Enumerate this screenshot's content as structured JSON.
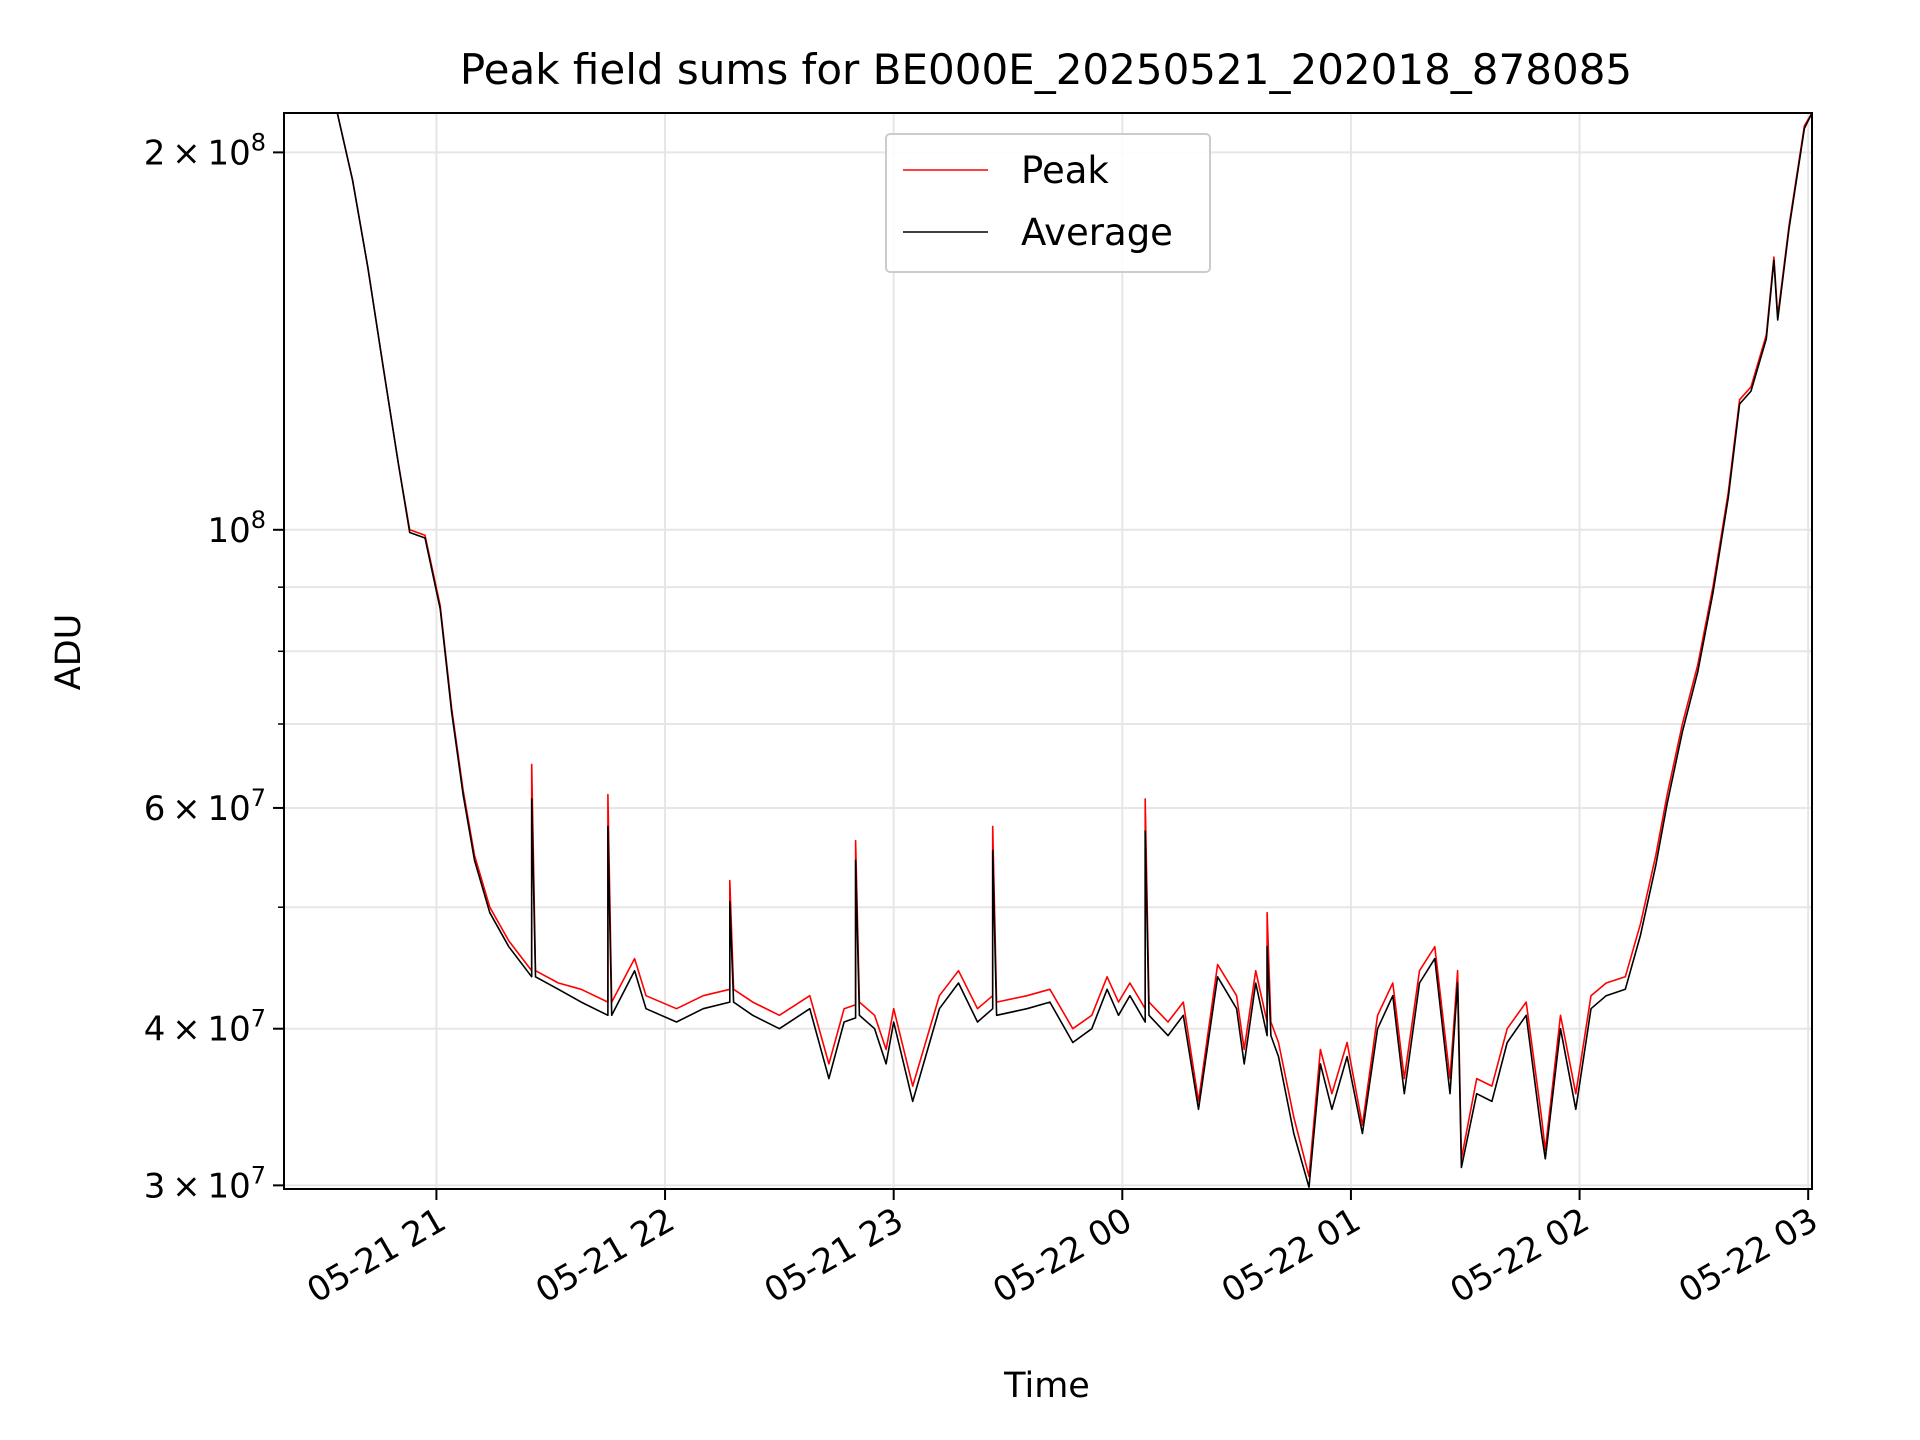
{
  "chart_data": {
    "type": "line",
    "title": "Peak field sums for BE000E_20250521_202018_878085",
    "xlabel": "Time",
    "ylabel": "ADU",
    "yscale": "log",
    "ylim": [
      29800000,
      215000000
    ],
    "xlim": [
      "2025-05-21 20:20",
      "2025-05-22 03:01"
    ],
    "grid": true,
    "legend_position": "top-center",
    "x_ticks": [
      {
        "t": "2025-05-21 21:00",
        "label": "05-21 21"
      },
      {
        "t": "2025-05-21 22:00",
        "label": "05-21 22"
      },
      {
        "t": "2025-05-21 23:00",
        "label": "05-21 23"
      },
      {
        "t": "2025-05-22 00:00",
        "label": "05-22 00"
      },
      {
        "t": "2025-05-22 01:00",
        "label": "05-22 01"
      },
      {
        "t": "2025-05-22 02:00",
        "label": "05-22 02"
      },
      {
        "t": "2025-05-22 03:00",
        "label": "05-22 03"
      }
    ],
    "y_ticks": [
      {
        "value": 30000000,
        "mant": "3",
        "exp": "7"
      },
      {
        "value": 40000000,
        "mant": "4",
        "exp": "7"
      },
      {
        "value": 60000000,
        "mant": "6",
        "exp": "7"
      },
      {
        "value": 100000000,
        "mant": "",
        "exp": "8"
      },
      {
        "value": 200000000,
        "mant": "2",
        "exp": "8"
      }
    ],
    "y_minor_ticks": [
      50000000,
      70000000,
      80000000,
      90000000
    ],
    "series": [
      {
        "name": "Peak",
        "color": "#ff0000",
        "points": [
          [
            "2025-05-21 20:34",
            215000000
          ],
          [
            "2025-05-21 20:38",
            190000000
          ],
          [
            "2025-05-21 20:42",
            162000000
          ],
          [
            "2025-05-21 20:46",
            135000000
          ],
          [
            "2025-05-21 20:50",
            113000000
          ],
          [
            "2025-05-21 20:53",
            100000000
          ],
          [
            "2025-05-21 20:57",
            99000000
          ],
          [
            "2025-05-21 21:01",
            87000000
          ],
          [
            "2025-05-21 21:04",
            72000000
          ],
          [
            "2025-05-21 21:07",
            62000000
          ],
          [
            "2025-05-21 21:10",
            55000000
          ],
          [
            "2025-05-21 21:14",
            50000000
          ],
          [
            "2025-05-21 21:19",
            47000000
          ],
          [
            "2025-05-21 21:25",
            44500000
          ],
          [
            "2025-05-21 21:25",
            65000000
          ],
          [
            "2025-05-21 21:26",
            44500000
          ],
          [
            "2025-05-21 21:32",
            43500000
          ],
          [
            "2025-05-21 21:38",
            43000000
          ],
          [
            "2025-05-21 21:45",
            42000000
          ],
          [
            "2025-05-21 21:45",
            61500000
          ],
          [
            "2025-05-21 21:46",
            42000000
          ],
          [
            "2025-05-21 21:52",
            45500000
          ],
          [
            "2025-05-21 21:55",
            42500000
          ],
          [
            "2025-05-21 22:03",
            41500000
          ],
          [
            "2025-05-21 22:10",
            42500000
          ],
          [
            "2025-05-21 22:17",
            43000000
          ],
          [
            "2025-05-21 22:17",
            52500000
          ],
          [
            "2025-05-21 22:18",
            43000000
          ],
          [
            "2025-05-21 22:23",
            42000000
          ],
          [
            "2025-05-21 22:30",
            41000000
          ],
          [
            "2025-05-21 22:38",
            42500000
          ],
          [
            "2025-05-21 22:43",
            37500000
          ],
          [
            "2025-05-21 22:47",
            41500000
          ],
          [
            "2025-05-21 22:50",
            41800000
          ],
          [
            "2025-05-21 22:50",
            56500000
          ],
          [
            "2025-05-21 22:51",
            42000000
          ],
          [
            "2025-05-21 22:55",
            41000000
          ],
          [
            "2025-05-21 22:58",
            38500000
          ],
          [
            "2025-05-21 23:00",
            41500000
          ],
          [
            "2025-05-21 23:05",
            36000000
          ],
          [
            "2025-05-21 23:12",
            42500000
          ],
          [
            "2025-05-21 23:17",
            44500000
          ],
          [
            "2025-05-21 23:22",
            41500000
          ],
          [
            "2025-05-21 23:26",
            42500000
          ],
          [
            "2025-05-21 23:26",
            58000000
          ],
          [
            "2025-05-21 23:27",
            42000000
          ],
          [
            "2025-05-21 23:35",
            42500000
          ],
          [
            "2025-05-21 23:41",
            43000000
          ],
          [
            "2025-05-21 23:47",
            40000000
          ],
          [
            "2025-05-21 23:52",
            41000000
          ],
          [
            "2025-05-21 23:56",
            44000000
          ],
          [
            "2025-05-21 23:59",
            42000000
          ],
          [
            "2025-05-22 00:02",
            43500000
          ],
          [
            "2025-05-22 00:06",
            41500000
          ],
          [
            "2025-05-22 00:06",
            61000000
          ],
          [
            "2025-05-22 00:07",
            42000000
          ],
          [
            "2025-05-22 00:12",
            40500000
          ],
          [
            "2025-05-22 00:16",
            42000000
          ],
          [
            "2025-05-22 00:20",
            35000000
          ],
          [
            "2025-05-22 00:25",
            45000000
          ],
          [
            "2025-05-22 00:30",
            42500000
          ],
          [
            "2025-05-22 00:32",
            38500000
          ],
          [
            "2025-05-22 00:35",
            44500000
          ],
          [
            "2025-05-22 00:38",
            40500000
          ],
          [
            "2025-05-22 00:38",
            49500000
          ],
          [
            "2025-05-22 00:39",
            40500000
          ],
          [
            "2025-05-22 00:41",
            39000000
          ],
          [
            "2025-05-22 00:45",
            34000000
          ],
          [
            "2025-05-22 00:49",
            30500000
          ],
          [
            "2025-05-22 00:52",
            38500000
          ],
          [
            "2025-05-22 00:55",
            35500000
          ],
          [
            "2025-05-22 00:59",
            39000000
          ],
          [
            "2025-05-22 01:03",
            33500000
          ],
          [
            "2025-05-22 01:07",
            41000000
          ],
          [
            "2025-05-22 01:11",
            43500000
          ],
          [
            "2025-05-22 01:14",
            36500000
          ],
          [
            "2025-05-22 01:18",
            44500000
          ],
          [
            "2025-05-22 01:22",
            46500000
          ],
          [
            "2025-05-22 01:26",
            36500000
          ],
          [
            "2025-05-22 01:28",
            44500000
          ],
          [
            "2025-05-22 01:29",
            31500000
          ],
          [
            "2025-05-22 01:33",
            36500000
          ],
          [
            "2025-05-22 01:37",
            36000000
          ],
          [
            "2025-05-22 01:41",
            40000000
          ],
          [
            "2025-05-22 01:46",
            42000000
          ],
          [
            "2025-05-22 01:50",
            34000000
          ],
          [
            "2025-05-22 01:51",
            32000000
          ],
          [
            "2025-05-22 01:55",
            41000000
          ],
          [
            "2025-05-22 01:59",
            35500000
          ],
          [
            "2025-05-22 02:03",
            42500000
          ],
          [
            "2025-05-22 02:07",
            43500000
          ],
          [
            "2025-05-22 02:12",
            44000000
          ],
          [
            "2025-05-22 02:16",
            48500000
          ],
          [
            "2025-05-22 02:20",
            55000000
          ],
          [
            "2025-05-22 02:23",
            61500000
          ],
          [
            "2025-05-22 02:27",
            70000000
          ],
          [
            "2025-05-22 02:31",
            78000000
          ],
          [
            "2025-05-22 02:35",
            90000000
          ],
          [
            "2025-05-22 02:39",
            107000000
          ],
          [
            "2025-05-22 02:42",
            127000000
          ],
          [
            "2025-05-22 02:45",
            130000000
          ],
          [
            "2025-05-22 02:49",
            143000000
          ],
          [
            "2025-05-22 02:51",
            165000000
          ],
          [
            "2025-05-22 02:52",
            148000000
          ],
          [
            "2025-05-22 02:55",
            175000000
          ],
          [
            "2025-05-22 02:59",
            210000000
          ],
          [
            "2025-05-22 03:01",
            215000000
          ]
        ]
      },
      {
        "name": "Average",
        "color": "#000000",
        "points": [
          [
            "2025-05-21 20:34",
            215000000
          ],
          [
            "2025-05-21 20:38",
            190000000
          ],
          [
            "2025-05-21 20:42",
            162000000
          ],
          [
            "2025-05-21 20:46",
            135000000
          ],
          [
            "2025-05-21 20:50",
            113000000
          ],
          [
            "2025-05-21 20:53",
            99500000
          ],
          [
            "2025-05-21 20:57",
            98500000
          ],
          [
            "2025-05-21 21:01",
            86500000
          ],
          [
            "2025-05-21 21:04",
            71500000
          ],
          [
            "2025-05-21 21:07",
            61500000
          ],
          [
            "2025-05-21 21:10",
            54500000
          ],
          [
            "2025-05-21 21:14",
            49500000
          ],
          [
            "2025-05-21 21:19",
            46500000
          ],
          [
            "2025-05-21 21:25",
            44000000
          ],
          [
            "2025-05-21 21:25",
            61000000
          ],
          [
            "2025-05-21 21:26",
            44000000
          ],
          [
            "2025-05-21 21:32",
            43000000
          ],
          [
            "2025-05-21 21:38",
            42000000
          ],
          [
            "2025-05-21 21:45",
            41000000
          ],
          [
            "2025-05-21 21:45",
            58000000
          ],
          [
            "2025-05-21 21:46",
            41000000
          ],
          [
            "2025-05-21 21:52",
            44500000
          ],
          [
            "2025-05-21 21:55",
            41500000
          ],
          [
            "2025-05-21 22:03",
            40500000
          ],
          [
            "2025-05-21 22:10",
            41500000
          ],
          [
            "2025-05-21 22:17",
            42000000
          ],
          [
            "2025-05-21 22:17",
            50500000
          ],
          [
            "2025-05-21 22:18",
            42000000
          ],
          [
            "2025-05-21 22:23",
            41000000
          ],
          [
            "2025-05-21 22:30",
            40000000
          ],
          [
            "2025-05-21 22:38",
            41500000
          ],
          [
            "2025-05-21 22:43",
            36500000
          ],
          [
            "2025-05-21 22:47",
            40500000
          ],
          [
            "2025-05-21 22:50",
            40800000
          ],
          [
            "2025-05-21 22:50",
            54500000
          ],
          [
            "2025-05-21 22:51",
            41000000
          ],
          [
            "2025-05-21 22:55",
            40000000
          ],
          [
            "2025-05-21 22:58",
            37500000
          ],
          [
            "2025-05-21 23:00",
            40500000
          ],
          [
            "2025-05-21 23:05",
            35000000
          ],
          [
            "2025-05-21 23:12",
            41500000
          ],
          [
            "2025-05-21 23:17",
            43500000
          ],
          [
            "2025-05-21 23:22",
            40500000
          ],
          [
            "2025-05-21 23:26",
            41500000
          ],
          [
            "2025-05-21 23:26",
            55500000
          ],
          [
            "2025-05-21 23:27",
            41000000
          ],
          [
            "2025-05-21 23:35",
            41500000
          ],
          [
            "2025-05-21 23:41",
            42000000
          ],
          [
            "2025-05-21 23:47",
            39000000
          ],
          [
            "2025-05-21 23:52",
            40000000
          ],
          [
            "2025-05-21 23:56",
            43000000
          ],
          [
            "2025-05-21 23:59",
            41000000
          ],
          [
            "2025-05-22 00:02",
            42500000
          ],
          [
            "2025-05-22 00:06",
            40500000
          ],
          [
            "2025-05-22 00:06",
            57500000
          ],
          [
            "2025-05-22 00:07",
            41000000
          ],
          [
            "2025-05-22 00:12",
            39500000
          ],
          [
            "2025-05-22 00:16",
            41000000
          ],
          [
            "2025-05-22 00:20",
            34500000
          ],
          [
            "2025-05-22 00:25",
            44000000
          ],
          [
            "2025-05-22 00:30",
            41500000
          ],
          [
            "2025-05-22 00:32",
            37500000
          ],
          [
            "2025-05-22 00:35",
            43500000
          ],
          [
            "2025-05-22 00:38",
            39500000
          ],
          [
            "2025-05-22 00:38",
            46500000
          ],
          [
            "2025-05-22 00:39",
            39500000
          ],
          [
            "2025-05-22 00:41",
            38000000
          ],
          [
            "2025-05-22 00:45",
            33000000
          ],
          [
            "2025-05-22 00:49",
            29900000
          ],
          [
            "2025-05-22 00:52",
            37500000
          ],
          [
            "2025-05-22 00:55",
            34500000
          ],
          [
            "2025-05-22 00:59",
            38000000
          ],
          [
            "2025-05-22 01:03",
            33000000
          ],
          [
            "2025-05-22 01:07",
            40000000
          ],
          [
            "2025-05-22 01:11",
            42500000
          ],
          [
            "2025-05-22 01:14",
            35500000
          ],
          [
            "2025-05-22 01:18",
            43500000
          ],
          [
            "2025-05-22 01:22",
            45500000
          ],
          [
            "2025-05-22 01:26",
            35500000
          ],
          [
            "2025-05-22 01:28",
            43500000
          ],
          [
            "2025-05-22 01:29",
            31000000
          ],
          [
            "2025-05-22 01:33",
            35500000
          ],
          [
            "2025-05-22 01:37",
            35000000
          ],
          [
            "2025-05-22 01:41",
            39000000
          ],
          [
            "2025-05-22 01:46",
            41000000
          ],
          [
            "2025-05-22 01:50",
            33000000
          ],
          [
            "2025-05-22 01:51",
            31500000
          ],
          [
            "2025-05-22 01:55",
            40000000
          ],
          [
            "2025-05-22 01:59",
            34500000
          ],
          [
            "2025-05-22 02:03",
            41500000
          ],
          [
            "2025-05-22 02:07",
            42500000
          ],
          [
            "2025-05-22 02:12",
            43000000
          ],
          [
            "2025-05-22 02:16",
            47500000
          ],
          [
            "2025-05-22 02:20",
            54000000
          ],
          [
            "2025-05-22 02:23",
            60500000
          ],
          [
            "2025-05-22 02:27",
            69000000
          ],
          [
            "2025-05-22 02:31",
            77000000
          ],
          [
            "2025-05-22 02:35",
            89000000
          ],
          [
            "2025-05-22 02:39",
            106000000
          ],
          [
            "2025-05-22 02:42",
            126000000
          ],
          [
            "2025-05-22 02:45",
            129000000
          ],
          [
            "2025-05-22 02:49",
            142000000
          ],
          [
            "2025-05-22 02:51",
            164000000
          ],
          [
            "2025-05-22 02:52",
            147000000
          ],
          [
            "2025-05-22 02:55",
            174000000
          ],
          [
            "2025-05-22 02:59",
            209000000
          ],
          [
            "2025-05-22 03:01",
            215000000
          ]
        ]
      }
    ]
  }
}
